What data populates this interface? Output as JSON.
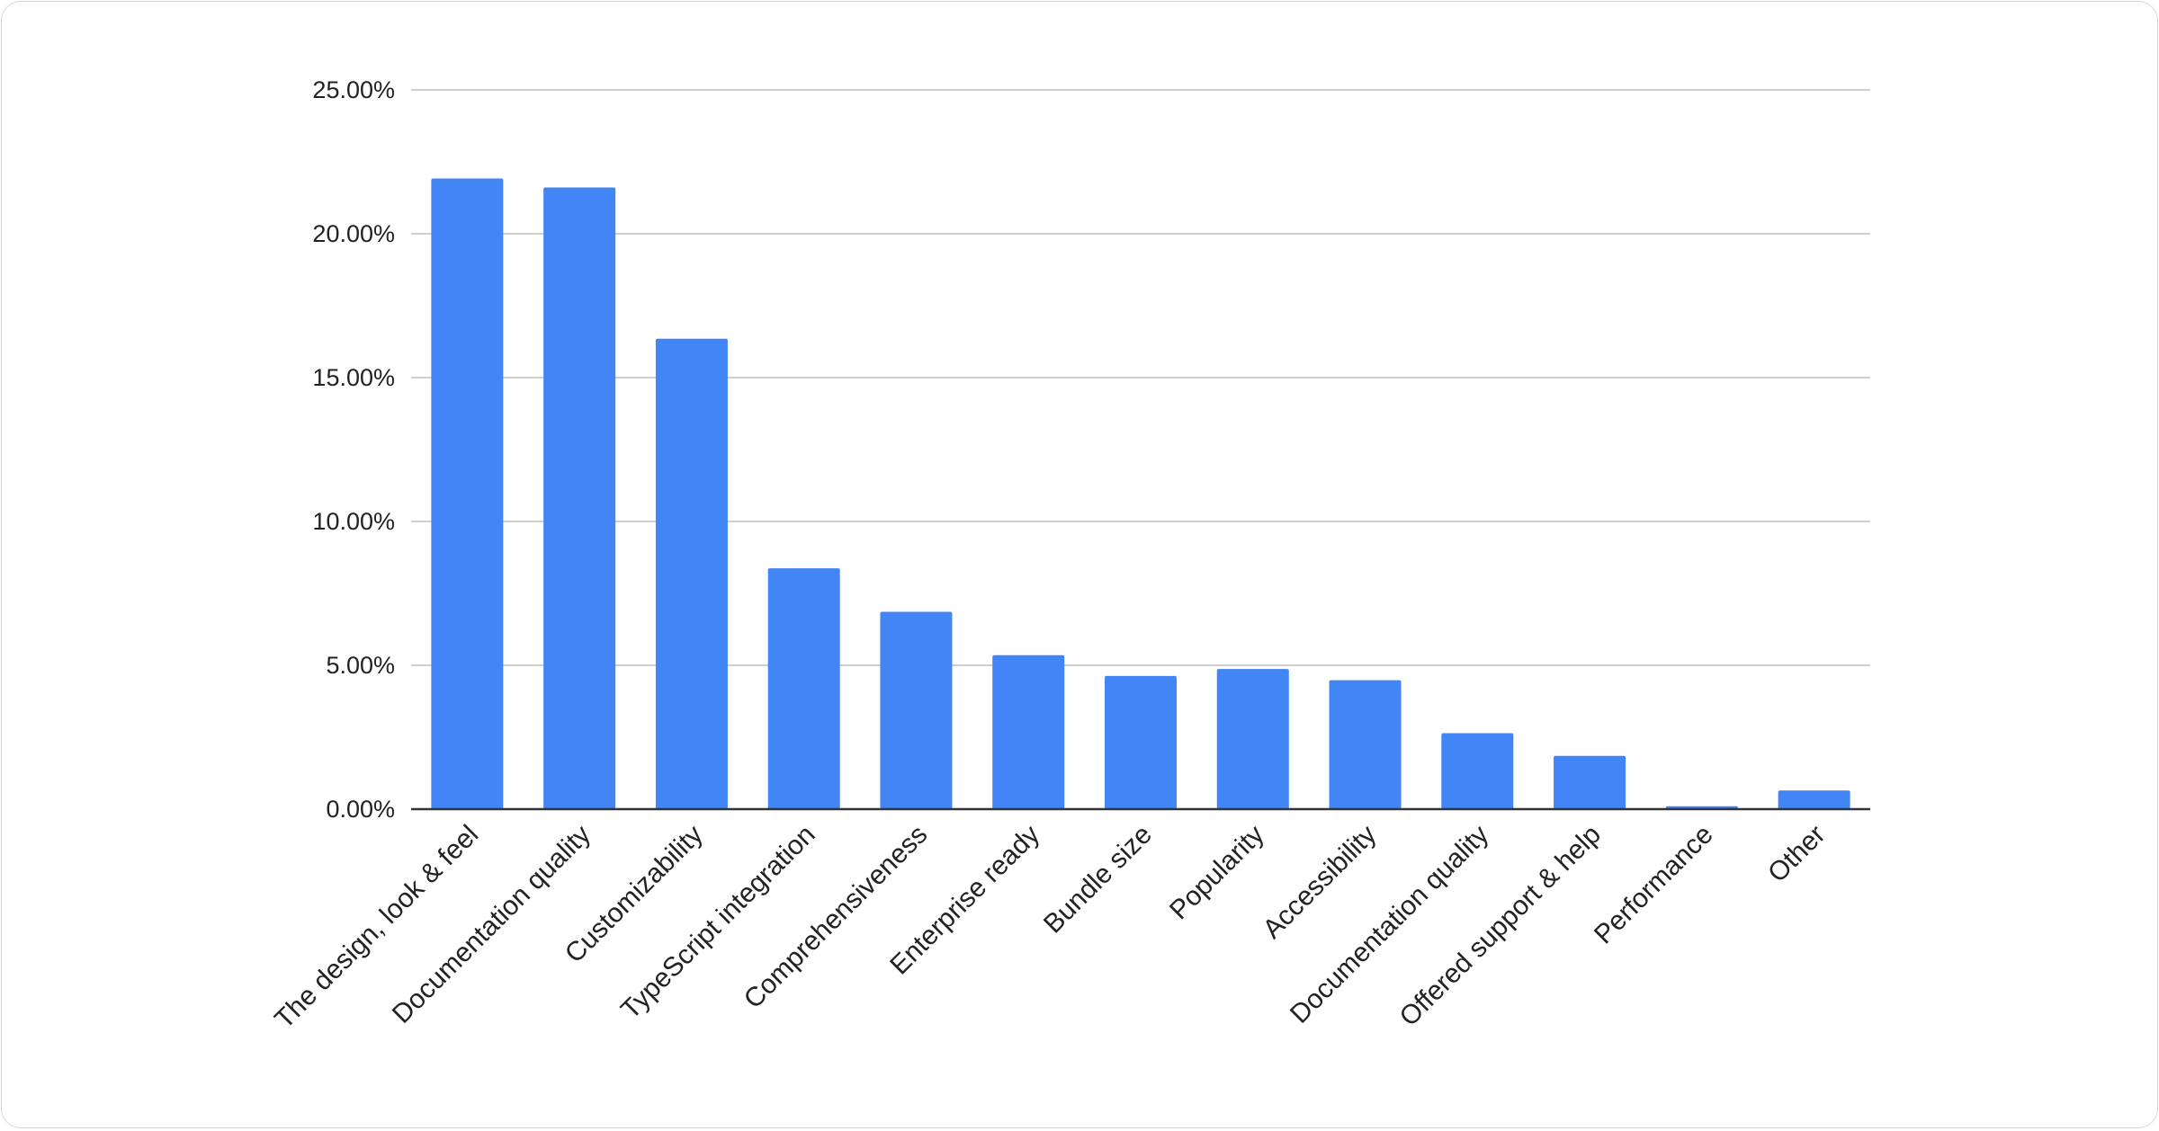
{
  "chart_data": {
    "type": "bar",
    "title": "",
    "xlabel": "",
    "ylabel": "",
    "categories": [
      "The design, look & feel",
      "Documentation quality",
      "Customizability",
      "TypeScript integration",
      "Comprehensiveness",
      "Enterprise ready",
      "Bundle size",
      "Popularity",
      "Accessibility",
      "Documentation quality",
      "Offered support & help",
      "Performance",
      "Other"
    ],
    "values": [
      21.92,
      21.61,
      16.35,
      8.37,
      6.86,
      5.35,
      4.63,
      4.87,
      4.48,
      2.64,
      1.85,
      0.1,
      0.65
    ],
    "ylim": [
      0,
      25
    ],
    "yticks": [
      "0.00%",
      "5.00%",
      "10.00%",
      "15.00%",
      "20.00%",
      "25.00%"
    ],
    "grid": true,
    "legend": "none",
    "bar_color": "#4285f4"
  }
}
